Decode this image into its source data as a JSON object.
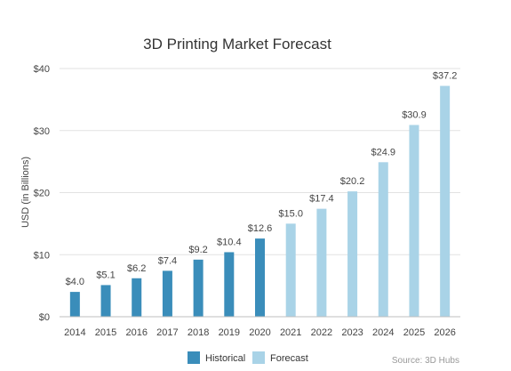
{
  "chart_data": {
    "type": "bar",
    "title": "3D Printing Market Forecast",
    "ylabel": "USD (in Billions)",
    "xlabel": "",
    "ylim": [
      0,
      40
    ],
    "yticks": [
      0,
      10,
      20,
      30,
      40
    ],
    "ytick_labels": [
      "$0",
      "$10",
      "$20",
      "$30",
      "$40"
    ],
    "grid": "horizontal",
    "legend_position": "bottom",
    "categories": [
      "2014",
      "2015",
      "2016",
      "2017",
      "2018",
      "2019",
      "2020",
      "2021",
      "2022",
      "2023",
      "2024",
      "2025",
      "2026"
    ],
    "values": [
      4.0,
      5.1,
      6.2,
      7.4,
      9.2,
      10.4,
      12.6,
      15.0,
      17.4,
      20.2,
      24.9,
      30.9,
      37.2
    ],
    "value_labels": [
      "$4.0",
      "$5.1",
      "$6.2",
      "$7.4",
      "$9.2",
      "$10.4",
      "$12.6",
      "$15.0",
      "$17.4",
      "$20.2",
      "$24.9",
      "$30.9",
      "$37.2"
    ],
    "groups": [
      "Historical",
      "Historical",
      "Historical",
      "Historical",
      "Historical",
      "Historical",
      "Historical",
      "Forecast",
      "Forecast",
      "Forecast",
      "Forecast",
      "Forecast",
      "Forecast"
    ],
    "legend": [
      {
        "name": "Historical",
        "color": "#3a8dba"
      },
      {
        "name": "Forecast",
        "color": "#a9d3e7"
      }
    ],
    "source": "Source: 3D Hubs"
  }
}
